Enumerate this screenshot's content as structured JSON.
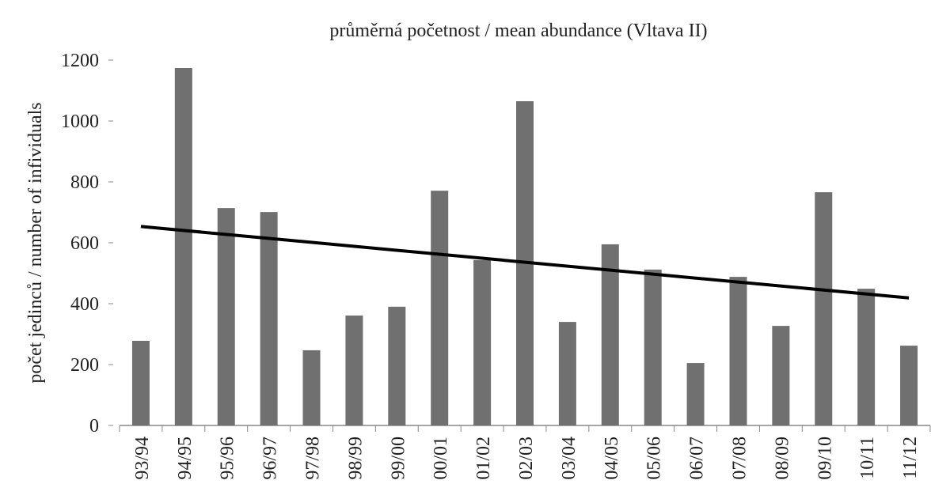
{
  "chart_data": {
    "type": "bar",
    "title": "průměrná početnost  / mean abundance (Vltava II)",
    "y_label": "počet jedinců / number of infividuals",
    "categories": [
      "93/94",
      "94/95",
      "95/96",
      "96/97",
      "97/98",
      "98/99",
      "99/00",
      "00/01",
      "01/02",
      "02/03",
      "03/04",
      "04/05",
      "05/06",
      "06/07",
      "07/08",
      "08/09",
      "09/10",
      "10/11",
      "11/12"
    ],
    "values": [
      278,
      1174,
      714,
      701,
      247,
      361,
      390,
      771,
      543,
      1065,
      340,
      595,
      512,
      205,
      488,
      327,
      766,
      449,
      262
    ],
    "color": "#707070",
    "trendline": "linear",
    "trend_color": "#000000",
    "ylim": [
      0,
      1200
    ],
    "yticks": [
      0,
      200,
      400,
      600,
      800,
      1000,
      1200
    ]
  }
}
